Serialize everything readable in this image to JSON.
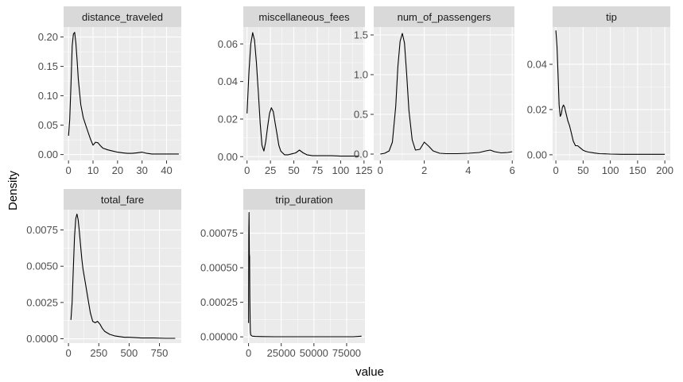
{
  "chart_data": {
    "type": "line",
    "xlabel": "value",
    "ylabel": "Density",
    "line_color": "#000000",
    "panel_color": "#EBEBEB",
    "strip_color": "#D9D9D9",
    "grid_color": "#FFFFFF",
    "facets": [
      {
        "name": "distance_traveled",
        "xlim": [
          -2,
          46
        ],
        "ylim": [
          -0.01,
          0.217
        ],
        "xticks": [
          0,
          10,
          20,
          30,
          40
        ],
        "xtick_labels": [
          "0",
          "10",
          "20",
          "30",
          "40"
        ],
        "yticks": [
          0,
          0.05,
          0.1,
          0.15,
          0.2
        ],
        "ytick_labels": [
          "0.00",
          "0.05",
          "0.10",
          "0.15",
          "0.20"
        ],
        "x": [
          0,
          0.5,
          1,
          1.5,
          2,
          2.5,
          3,
          3.5,
          4,
          5,
          6,
          7,
          8,
          9,
          10,
          11,
          12,
          13,
          14,
          16,
          18,
          20,
          22,
          24,
          26,
          28,
          30,
          32,
          34,
          36,
          38,
          40,
          42,
          44,
          45
        ],
        "y": [
          0.032,
          0.06,
          0.12,
          0.185,
          0.205,
          0.208,
          0.19,
          0.16,
          0.128,
          0.085,
          0.063,
          0.05,
          0.038,
          0.026,
          0.016,
          0.021,
          0.02,
          0.015,
          0.011,
          0.008,
          0.006,
          0.004,
          0.003,
          0.002,
          0.002,
          0.003,
          0.004,
          0.002,
          0.001,
          0.001,
          0.001,
          0.001,
          0.001,
          0.001,
          0.001
        ]
      },
      {
        "name": "miscellaneous_fees",
        "xlim": [
          -4,
          126
        ],
        "ylim": [
          -0.002,
          0.069
        ],
        "xticks": [
          0,
          25,
          50,
          75,
          100,
          125
        ],
        "xtick_labels": [
          "0",
          "25",
          "50",
          "75",
          "100",
          "125"
        ],
        "yticks": [
          0,
          0.02,
          0.04,
          0.06
        ],
        "ytick_labels": [
          "0.00",
          "0.02",
          "0.04",
          "0.06"
        ],
        "x": [
          0,
          2,
          4,
          6,
          8,
          10,
          12,
          14,
          16,
          18,
          20,
          22,
          24,
          26,
          28,
          30,
          32,
          34,
          36,
          38,
          40,
          44,
          48,
          52,
          56,
          60,
          64,
          70,
          80,
          90,
          100,
          110,
          120
        ],
        "y": [
          0.023,
          0.045,
          0.06,
          0.066,
          0.062,
          0.05,
          0.035,
          0.018,
          0.006,
          0.003,
          0.008,
          0.016,
          0.023,
          0.026,
          0.024,
          0.018,
          0.012,
          0.006,
          0.003,
          0.002,
          0.001,
          0.001,
          0.0015,
          0.002,
          0.0035,
          0.002,
          0.001,
          0.0005,
          0.0005,
          0.0005,
          0.0003,
          0.0003,
          0.0003
        ]
      },
      {
        "name": "num_of_passengers",
        "xlim": [
          -0.3,
          6.1
        ],
        "ylim": [
          -0.08,
          1.6
        ],
        "xticks": [
          0,
          2,
          4,
          6
        ],
        "xtick_labels": [
          "0",
          "2",
          "4",
          "6"
        ],
        "yticks": [
          0,
          0.5,
          1,
          1.5
        ],
        "ytick_labels": [
          "0.0",
          "0.5",
          "1.0",
          "1.5"
        ],
        "x": [
          0,
          0.2,
          0.4,
          0.55,
          0.7,
          0.8,
          0.9,
          1,
          1.1,
          1.2,
          1.3,
          1.45,
          1.6,
          1.8,
          2,
          2.2,
          2.4,
          2.7,
          3,
          3.5,
          4,
          4.5,
          4.8,
          5,
          5.2,
          5.5,
          5.8,
          6
        ],
        "y": [
          0,
          0.01,
          0.04,
          0.15,
          0.6,
          1.1,
          1.42,
          1.52,
          1.4,
          1.0,
          0.55,
          0.18,
          0.05,
          0.06,
          0.15,
          0.1,
          0.04,
          0.01,
          0.005,
          0.005,
          0.01,
          0.02,
          0.04,
          0.05,
          0.03,
          0.015,
          0.02,
          0.03
        ]
      },
      {
        "name": "tip",
        "xlim": [
          -6,
          210
        ],
        "ylim": [
          -0.0025,
          0.0565
        ],
        "xticks": [
          0,
          50,
          100,
          150,
          200
        ],
        "xtick_labels": [
          "0",
          "50",
          "100",
          "150",
          "200"
        ],
        "yticks": [
          0,
          0.02,
          0.04
        ],
        "ytick_labels": [
          "0.00",
          "0.02",
          "0.04"
        ],
        "x": [
          0,
          2,
          4,
          6,
          8,
          10,
          12,
          14,
          16,
          18,
          20,
          22,
          25,
          28,
          32,
          36,
          40,
          45,
          50,
          55,
          60,
          70,
          80,
          90,
          100,
          120,
          140,
          160,
          180,
          200
        ],
        "y": [
          0.055,
          0.048,
          0.035,
          0.022,
          0.017,
          0.018,
          0.021,
          0.022,
          0.021,
          0.019,
          0.017,
          0.015,
          0.013,
          0.01,
          0.006,
          0.004,
          0.004,
          0.003,
          0.002,
          0.0015,
          0.0012,
          0.0008,
          0.0005,
          0.0004,
          0.0003,
          0.0002,
          0.0002,
          0.0002,
          0.0002,
          0.0002
        ]
      },
      {
        "name": "total_fare",
        "xlim": [
          -40,
          930
        ],
        "ylim": [
          -0.0003,
          0.0089
        ],
        "xticks": [
          0,
          250,
          500,
          750
        ],
        "xtick_labels": [
          "0",
          "250",
          "500",
          "750"
        ],
        "yticks": [
          0,
          0.0025,
          0.005,
          0.0075
        ],
        "ytick_labels": [
          "0.0000",
          "0.0025",
          "0.0050",
          "0.0075"
        ],
        "x": [
          20,
          30,
          40,
          50,
          60,
          70,
          80,
          90,
          100,
          110,
          120,
          140,
          160,
          180,
          200,
          220,
          240,
          260,
          280,
          300,
          340,
          380,
          420,
          460,
          500,
          600,
          700,
          800,
          880
        ],
        "y": [
          0.0013,
          0.0025,
          0.0048,
          0.007,
          0.0083,
          0.0086,
          0.0082,
          0.0074,
          0.0064,
          0.0055,
          0.0048,
          0.0038,
          0.0028,
          0.0018,
          0.0012,
          0.0011,
          0.0012,
          0.001,
          0.0007,
          0.0005,
          0.0003,
          0.0002,
          0.00015,
          0.0001,
          0.0001,
          5e-05,
          5e-05,
          3e-05,
          3e-05
        ]
      },
      {
        "name": "trip_duration",
        "xlim": [
          -4000,
          89000
        ],
        "ylim": [
          -4.5e-05,
          0.00092
        ],
        "xticks": [
          0,
          25000,
          50000,
          75000
        ],
        "xtick_labels": [
          "0",
          "25000",
          "50000",
          "75000"
        ],
        "yticks": [
          0,
          0.00025,
          0.0005,
          0.00075
        ],
        "ytick_labels": [
          "0.00000",
          "0.00025",
          "0.00050",
          "0.00075"
        ],
        "x": [
          0,
          200,
          400,
          600,
          800,
          1000,
          1200,
          1400,
          1600,
          2000,
          3000,
          5000,
          10000,
          20000,
          40000,
          60000,
          80000,
          86400
        ],
        "y": [
          0.0001,
          0.00075,
          0.0009,
          0.0006,
          0.00058,
          0.0003,
          0.00012,
          4e-05,
          2e-05,
          1e-05,
          5e-06,
          3e-06,
          2e-06,
          1e-06,
          1e-06,
          1e-06,
          1e-06,
          5e-06
        ]
      }
    ]
  }
}
